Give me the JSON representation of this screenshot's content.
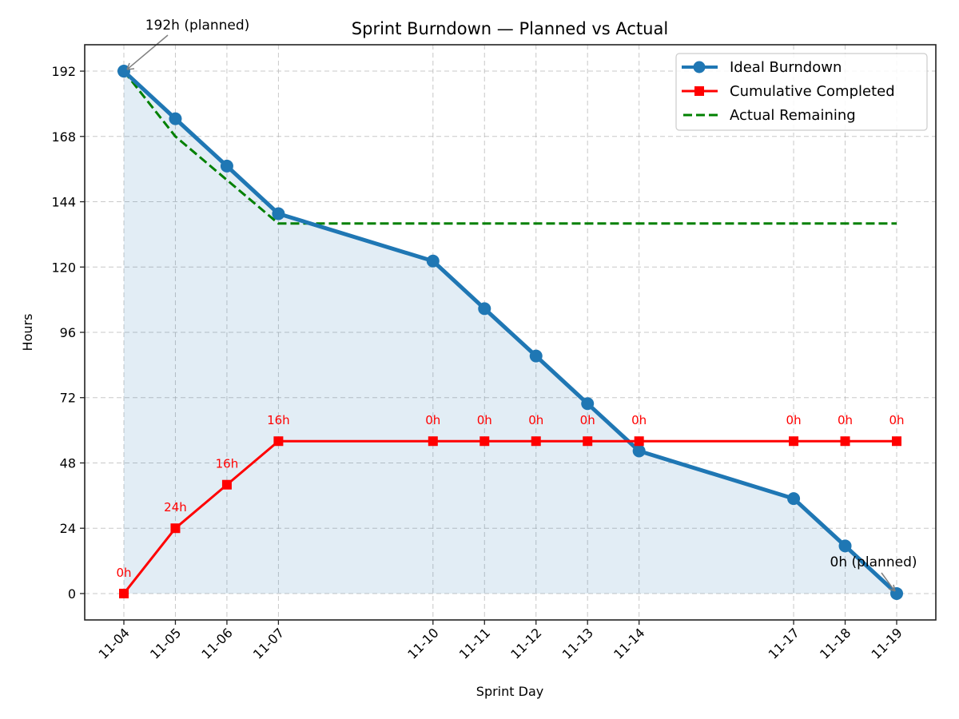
{
  "chart_data": {
    "type": "line",
    "title": "Sprint Burndown — Planned vs Actual",
    "xlabel": "Sprint Day",
    "ylabel": "Hours",
    "categories": [
      "11-04",
      "11-05",
      "11-06",
      "11-07",
      "11-10",
      "11-11",
      "11-12",
      "11-13",
      "11-14",
      "11-17",
      "11-18",
      "11-19"
    ],
    "x_day_offsets": [
      0,
      1,
      2,
      3,
      6,
      7,
      8,
      9,
      10,
      13,
      14,
      15
    ],
    "xlim": [
      -0.76,
      15.76
    ],
    "ylim": [
      -9.7,
      201.7
    ],
    "yticks": [
      0,
      24,
      48,
      72,
      96,
      120,
      144,
      168,
      192
    ],
    "grid": true,
    "legend_position": "upper right",
    "series": [
      {
        "name": "Ideal Burndown",
        "color": "#1f77b4",
        "style": "solid-circle-markers",
        "fill_under": true,
        "fill_color": "#1f77b4",
        "values": [
          192,
          174.5,
          157.1,
          139.6,
          122.2,
          104.7,
          87.3,
          69.8,
          52.4,
          34.9,
          17.5,
          0
        ]
      },
      {
        "name": "Cumulative Completed",
        "color": "#ff0000",
        "style": "solid-square-markers",
        "values": [
          0,
          24,
          40,
          56,
          56,
          56,
          56,
          56,
          56,
          56,
          56,
          56
        ],
        "point_labels": [
          "0h",
          "24h",
          "16h",
          "16h",
          "0h",
          "0h",
          "0h",
          "0h",
          "0h",
          "0h",
          "0h",
          "0h"
        ]
      },
      {
        "name": "Actual Remaining",
        "color": "#008000",
        "style": "dashed",
        "values": [
          192,
          168,
          152,
          136,
          136,
          136,
          136,
          136,
          136,
          136,
          136,
          136
        ]
      }
    ],
    "annotations": [
      {
        "text": "192h (planned)",
        "point_index": 0,
        "series": "Ideal Burndown"
      },
      {
        "text": "0h (planned)",
        "point_index": 11,
        "series": "Ideal Burndown"
      }
    ]
  }
}
